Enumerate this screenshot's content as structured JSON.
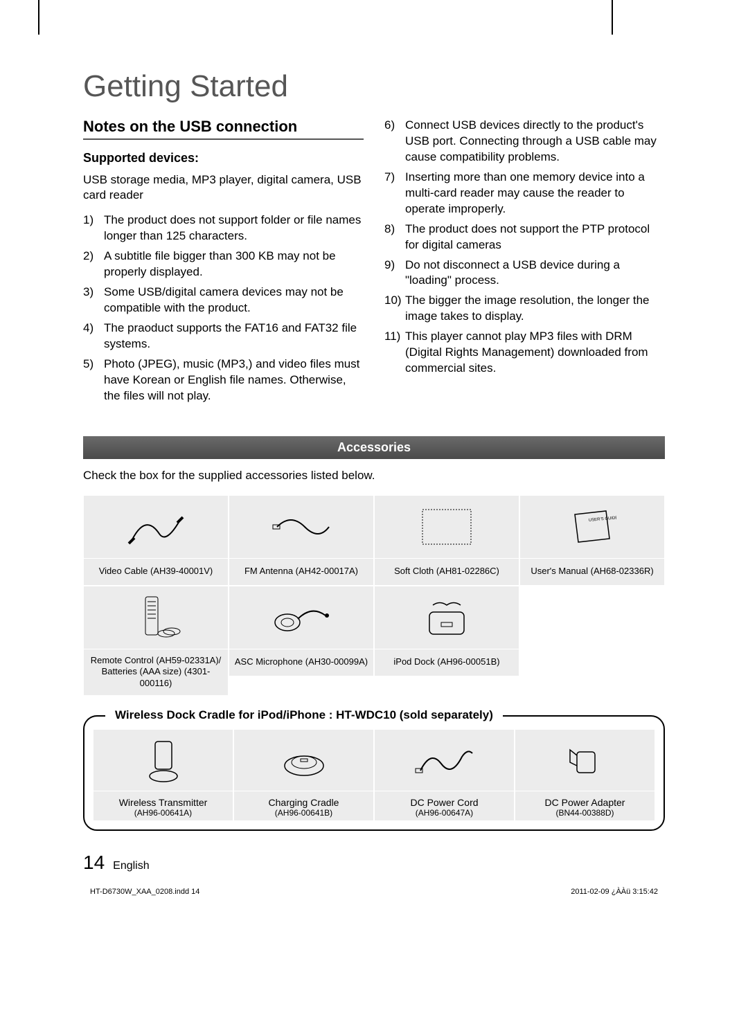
{
  "section_title": "Getting Started",
  "subsection": "Notes on the USB connection",
  "minor_heading": "Supported devices:",
  "lead_text": "USB storage media, MP3 player, digital camera, USB card reader",
  "notes_left": [
    {
      "n": "1)",
      "t": "The product does not support folder or file names longer than 125 characters."
    },
    {
      "n": "2)",
      "t": "A subtitle file bigger than 300 KB may not be properly displayed."
    },
    {
      "n": "3)",
      "t": "Some USB/digital camera devices may not be compatible with the product."
    },
    {
      "n": "4)",
      "t": "The praoduct supports the FAT16 and FAT32 file systems."
    },
    {
      "n": "5)",
      "t": "Photo (JPEG), music (MP3,) and video files must have Korean or English file names. Otherwise, the files will not play."
    }
  ],
  "notes_right": [
    {
      "n": "6)",
      "t": "Connect USB devices directly to the product's USB port. Connecting through a USB cable may cause compatibility problems."
    },
    {
      "n": "7)",
      "t": "Inserting more than one memory device into a multi-card reader may cause the reader to operate improperly."
    },
    {
      "n": "8)",
      "t": "The product does not support the PTP protocol for digital cameras"
    },
    {
      "n": "9)",
      "t": "Do not disconnect a USB device during a \"loading\" process."
    },
    {
      "n": "10)",
      "t": "The bigger the image resolution, the longer the image takes to display."
    },
    {
      "n": "11)",
      "t": "This player cannot play MP3 files with DRM (Digital Rights Management) downloaded from commercial sites."
    }
  ],
  "accessories_banner": "Accessories",
  "accessories_intro": "Check the box for the supplied accessories listed below.",
  "accessories": [
    {
      "label": "Video Cable (AH39-40001V)"
    },
    {
      "label": "FM Antenna (AH42-00017A)"
    },
    {
      "label": "Soft Cloth (AH81-02286C)"
    },
    {
      "label": "User's Manual (AH68-02336R)"
    },
    {
      "label": "Remote Control (AH59-02331A)/ Batteries (AAA size) (4301-000116)"
    },
    {
      "label": "ASC Microphone (AH30-00099A)"
    },
    {
      "label": "iPod Dock (AH96-00051B)"
    }
  ],
  "dock_title": "Wireless Dock Cradle for iPod/iPhone : HT-WDC10 (sold separately)",
  "dock_items": [
    {
      "name": "Wireless Transmitter",
      "code": "(AH96-00641A)"
    },
    {
      "name": "Charging Cradle",
      "code": "(AH96-00641B)"
    },
    {
      "name": "DC Power Cord",
      "code": "(AH96-00647A)"
    },
    {
      "name": "DC Power Adapter",
      "code": "(BN44-00388D)"
    }
  ],
  "page_number": "14",
  "page_lang": "English",
  "doc_meta_left": "HT-D6730W_XAA_0208.indd   14",
  "doc_meta_right": "2011-02-09   ¿ÀÀü 3:15:42"
}
